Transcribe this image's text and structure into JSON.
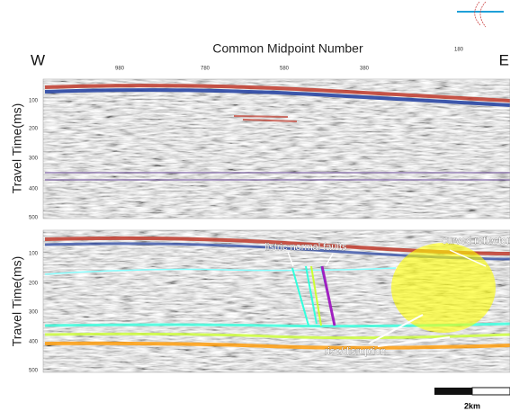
{
  "header": {
    "title": "Common Midpoint Number",
    "west": "W",
    "east": "E"
  },
  "top_axis": {
    "ticks": [
      "980",
      "780",
      "580",
      "380",
      "180"
    ]
  },
  "panels": [
    {
      "y_label": "Travel Time(ms)",
      "y_ticks": [
        "100",
        "200",
        "300",
        "400",
        "500"
      ]
    },
    {
      "y_label": "Travel Time(ms)",
      "y_ticks": [
        "100",
        "200",
        "300",
        "400",
        "500"
      ],
      "annotations": [
        "listric normal faults",
        "curved reflector",
        "rise/disruption"
      ]
    }
  ],
  "scale_bar": {
    "label": "2km"
  }
}
